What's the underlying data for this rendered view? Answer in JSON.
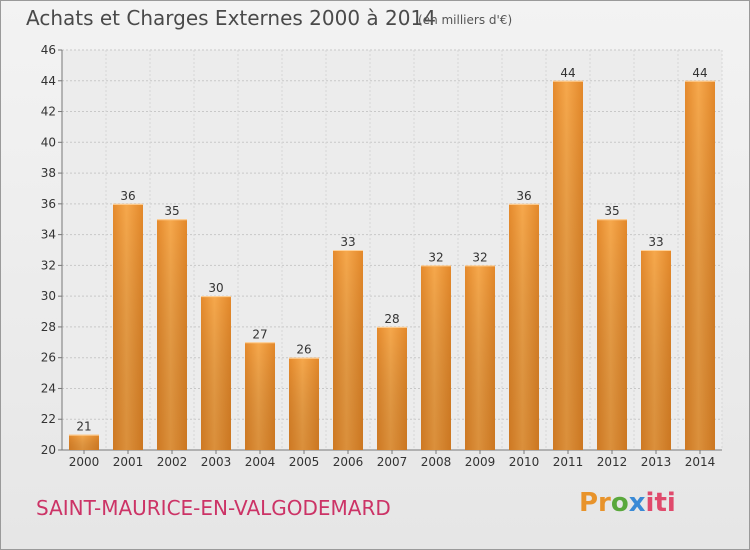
{
  "title": "Achats et Charges Externes 2000 à 2014",
  "subtitle": "(en milliers d'€)",
  "commune": "SAINT-MAURICE-EN-VALGODEMARD",
  "logo": {
    "p1": "Pr",
    "p2": "o",
    "p3": "x",
    "p4": "iti"
  },
  "colors": {
    "bar": "#f0a040",
    "bar_dark": "#cc6a1a",
    "title": "#4a4a4a",
    "commune": "#cc3366"
  },
  "chart_data": {
    "type": "bar",
    "categories": [
      "2000",
      "2001",
      "2002",
      "2003",
      "2004",
      "2005",
      "2006",
      "2007",
      "2008",
      "2009",
      "2010",
      "2011",
      "2012",
      "2013",
      "2014"
    ],
    "values": [
      21,
      36,
      35,
      30,
      27,
      26,
      33,
      28,
      32,
      32,
      36,
      44,
      35,
      33,
      44
    ],
    "ylim": [
      20,
      46
    ],
    "yticks": [
      20,
      22,
      24,
      26,
      28,
      30,
      32,
      34,
      36,
      38,
      40,
      42,
      44,
      46
    ],
    "grid": true,
    "title": "Achats et Charges Externes 2000 à 2014",
    "xlabel": "",
    "ylabel": ""
  }
}
